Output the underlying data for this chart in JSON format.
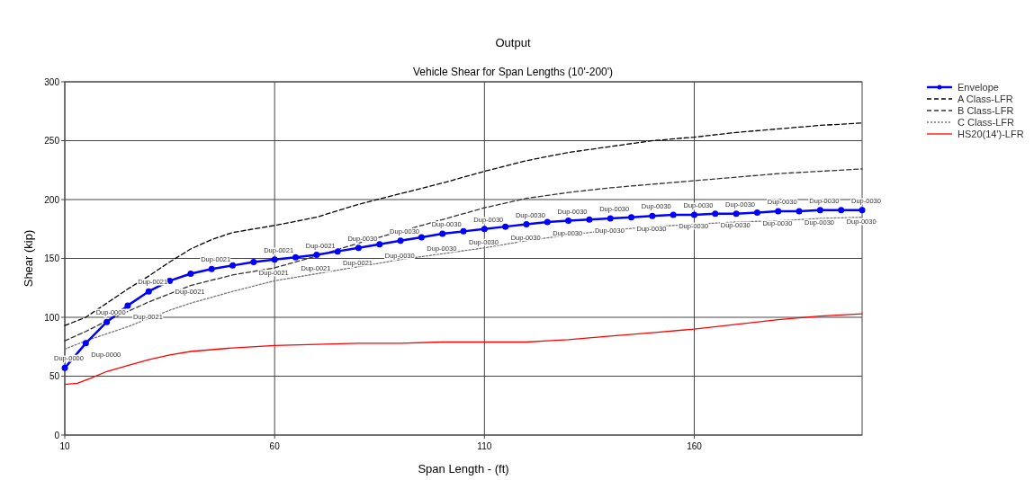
{
  "chart_data": {
    "type": "line",
    "title": "Output",
    "subtitle": "Vehicle Shear for Span Lengths (10'-200')",
    "xlabel": "Span Length - (ft)",
    "ylabel": "Shear (kip)",
    "xlim": [
      10,
      200
    ],
    "xticks": [
      10,
      60,
      110,
      160
    ],
    "ylim": [
      0,
      300
    ],
    "yticks": [
      0,
      50,
      100,
      150,
      200,
      250,
      300
    ],
    "grid": true,
    "legend": "top right",
    "series": [
      {
        "name": "Envelope",
        "color": "#0000ff",
        "marker": "circle",
        "line_style": "solid",
        "x": [
          10,
          15,
          20,
          25,
          30,
          35,
          40,
          45,
          50,
          55,
          60,
          65,
          70,
          75,
          80,
          85,
          90,
          95,
          100,
          105,
          110,
          115,
          120,
          125,
          130,
          135,
          140,
          145,
          150,
          155,
          160,
          165,
          170,
          175,
          180,
          185,
          190,
          195,
          200
        ],
        "values": [
          57,
          78,
          96,
          110,
          122,
          131,
          137,
          141,
          144,
          147,
          149,
          151,
          153,
          156,
          159,
          162,
          165,
          168,
          171,
          173,
          175,
          177,
          179,
          181,
          182,
          183,
          184,
          185,
          186,
          187,
          187,
          188,
          188,
          189,
          190,
          190,
          191,
          191,
          191
        ]
      },
      {
        "name": "A Class-LFR",
        "color": "#000000",
        "marker": "none",
        "line_style": "dashed",
        "x": [
          10,
          15,
          20,
          25,
          30,
          35,
          40,
          45,
          50,
          60,
          70,
          80,
          90,
          100,
          110,
          120,
          130,
          140,
          150,
          160,
          170,
          180,
          190,
          200
        ],
        "values": [
          93,
          100,
          112,
          124,
          135,
          147,
          158,
          166,
          172,
          178,
          185,
          196,
          205,
          214,
          224,
          233,
          240,
          245,
          250,
          253,
          257,
          260,
          263,
          265
        ]
      },
      {
        "name": "B Class-LFR",
        "color": "#333333",
        "marker": "none",
        "line_style": "dashed",
        "x": [
          10,
          15,
          20,
          25,
          30,
          35,
          40,
          50,
          60,
          70,
          80,
          90,
          100,
          110,
          120,
          130,
          140,
          150,
          160,
          170,
          180,
          190,
          200
        ],
        "values": [
          80,
          88,
          97,
          105,
          113,
          120,
          127,
          136,
          142,
          152,
          163,
          173,
          183,
          193,
          201,
          206,
          210,
          213,
          216,
          219,
          222,
          224,
          226
        ]
      },
      {
        "name": "C Class-LFR",
        "color": "#777777",
        "marker": "none",
        "line_style": "dotted",
        "x": [
          10,
          15,
          20,
          25,
          30,
          35,
          40,
          50,
          60,
          70,
          80,
          90,
          100,
          110,
          120,
          130,
          140,
          150,
          160,
          170,
          180,
          190,
          200
        ],
        "values": [
          73,
          80,
          86,
          92,
          99,
          106,
          112,
          122,
          131,
          137,
          143,
          149,
          154,
          159,
          165,
          170,
          174,
          177,
          179,
          181,
          182,
          184,
          185
        ]
      },
      {
        "name": "HS20(14')-LFR",
        "color": "#ff0000",
        "marker": "none",
        "line_style": "solid",
        "x": [
          10,
          13,
          16,
          20,
          25,
          30,
          35,
          40,
          50,
          60,
          70,
          80,
          90,
          100,
          110,
          120,
          125,
          130,
          140,
          150,
          160,
          170,
          180,
          190,
          200
        ],
        "values": [
          43,
          44,
          48,
          54,
          59,
          64,
          68,
          71,
          74,
          76,
          77,
          78,
          78,
          79,
          79,
          79,
          80,
          81,
          84,
          87,
          90,
          94,
          98,
          101,
          103
        ]
      }
    ],
    "annotations": [
      {
        "text": "Dup-0000",
        "x": 10,
        "y": 57
      },
      {
        "text": "Dup-0000",
        "x": 15,
        "y": 78
      },
      {
        "text": "Dup-0000",
        "x": 20,
        "y": 96
      },
      {
        "text": "Dup-0021",
        "x": 25,
        "y": 110
      },
      {
        "text": "Dup-0021",
        "x": 30,
        "y": 122
      },
      {
        "text": "Dup-0021",
        "x": 35,
        "y": 131
      },
      {
        "text": "Dup-0021",
        "x": 45,
        "y": 141
      },
      {
        "text": "Dup-0021",
        "x": 55,
        "y": 147
      },
      {
        "text": "Dup-0021",
        "x": 60,
        "y": 149
      },
      {
        "text": "Dup-0021",
        "x": 65,
        "y": 151
      },
      {
        "text": "Dup-0021",
        "x": 70,
        "y": 153
      },
      {
        "text": "Dup-0021",
        "x": 75,
        "y": 156
      },
      {
        "text": "Dup-0030",
        "x": 80,
        "y": 159
      },
      {
        "text": "Dup-0030",
        "x": 85,
        "y": 162
      },
      {
        "text": "Dup-0030",
        "x": 90,
        "y": 165
      },
      {
        "text": "Dup-0030",
        "x": 95,
        "y": 168
      },
      {
        "text": "Dup-0030",
        "x": 100,
        "y": 171
      },
      {
        "text": "Dup-0030",
        "x": 105,
        "y": 173
      },
      {
        "text": "Dup-0030",
        "x": 110,
        "y": 175
      },
      {
        "text": "Dup-0030",
        "x": 115,
        "y": 177
      },
      {
        "text": "Dup-0030",
        "x": 120,
        "y": 179
      },
      {
        "text": "Dup-0030",
        "x": 125,
        "y": 181
      },
      {
        "text": "Dup-0030",
        "x": 130,
        "y": 182
      },
      {
        "text": "Dup-0030",
        "x": 135,
        "y": 183
      },
      {
        "text": "Dup-0030",
        "x": 140,
        "y": 184
      },
      {
        "text": "Dup-0030",
        "x": 145,
        "y": 185
      },
      {
        "text": "Dup-0030",
        "x": 150,
        "y": 186
      },
      {
        "text": "Dup-0030",
        "x": 155,
        "y": 187
      },
      {
        "text": "Dup-0030",
        "x": 160,
        "y": 187
      },
      {
        "text": "Dup-0030",
        "x": 165,
        "y": 188
      },
      {
        "text": "Dup-0030",
        "x": 170,
        "y": 188
      },
      {
        "text": "Dup-0030",
        "x": 175,
        "y": 189
      },
      {
        "text": "Dup-0030",
        "x": 180,
        "y": 190
      },
      {
        "text": "Dup-0030",
        "x": 185,
        "y": 190
      },
      {
        "text": "Dup-0030",
        "x": 190,
        "y": 191
      },
      {
        "text": "Dup-0030",
        "x": 195,
        "y": 191
      },
      {
        "text": "Dup-0030",
        "x": 200,
        "y": 191
      }
    ]
  }
}
